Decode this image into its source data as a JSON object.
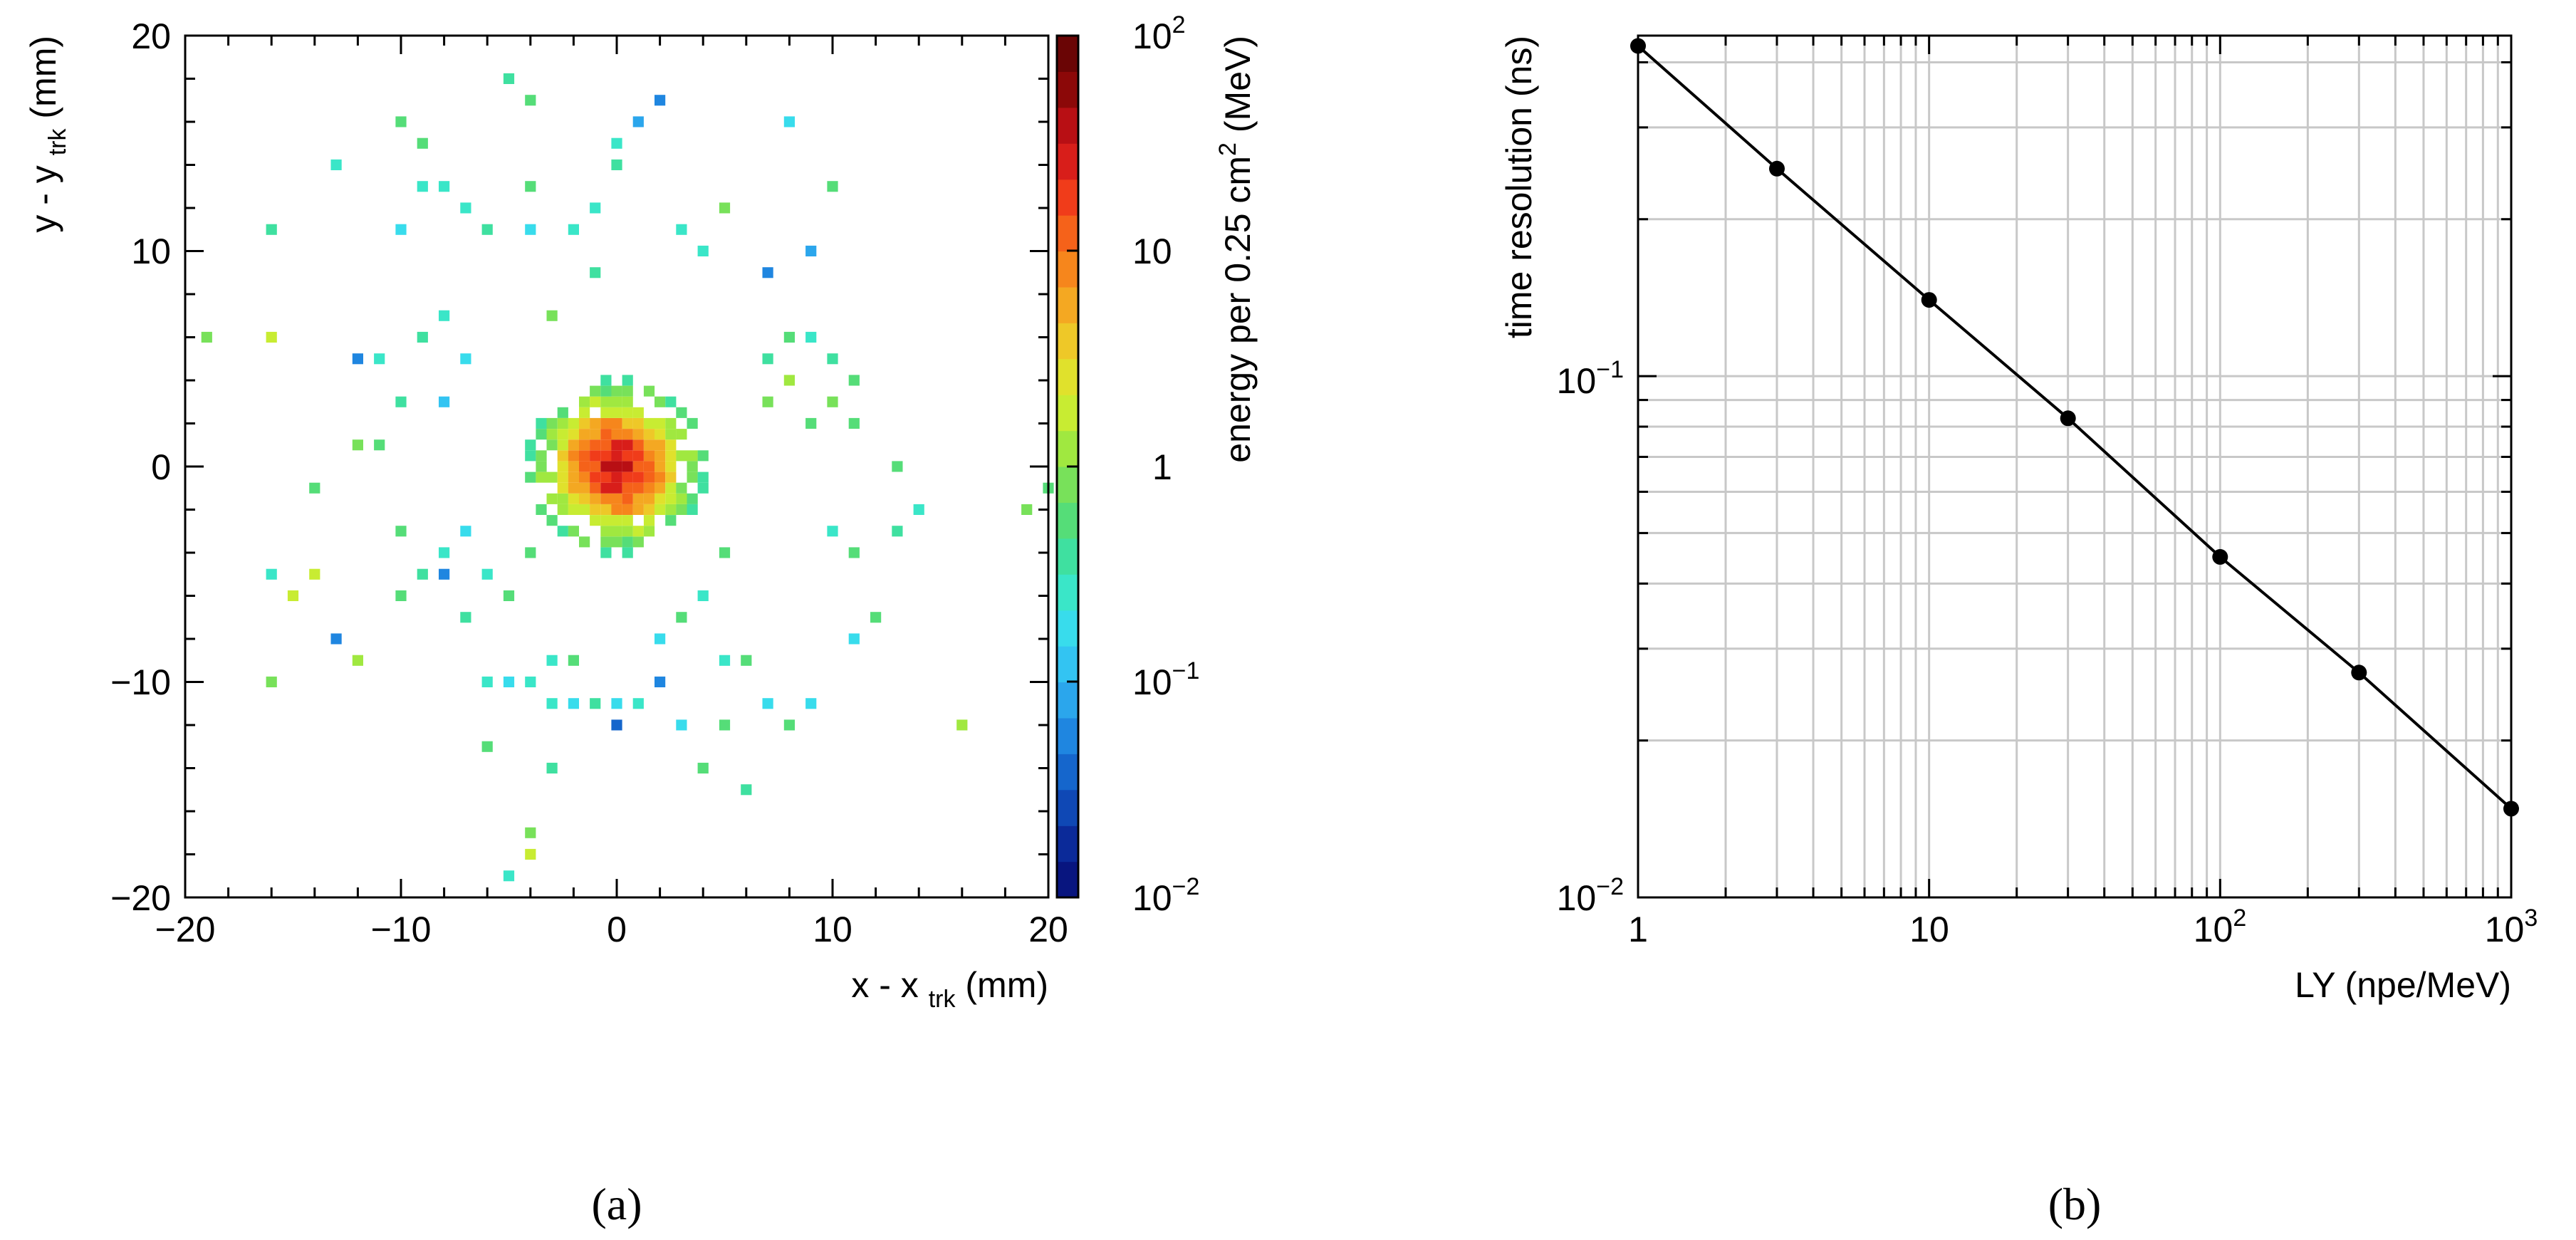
{
  "chart_data": [
    {
      "type": "heatmap",
      "panel_label": "(a)",
      "xlabel": "x - x",
      "xlabel_sub": "trk",
      "xlabel_unit": "(mm)",
      "ylabel": "y - y",
      "ylabel_sub": "trk",
      "ylabel_unit": "(mm)",
      "xlim": [
        -20,
        20
      ],
      "ylim": [
        -20,
        20
      ],
      "bin_size_mm": 0.5,
      "x_ticks": [
        "−20",
        "−10",
        "0",
        "10",
        "20"
      ],
      "y_ticks": [
        "20",
        "10",
        "0",
        "−10",
        "−20"
      ],
      "colorbar": {
        "label": "energy per 0.25 cm",
        "label_sup": "2",
        "label_unit": "(MeV)",
        "scale": "log",
        "range": [
          0.01,
          100
        ],
        "ticks": [
          {
            "base": "10",
            "exp": "2"
          },
          {
            "base": "10",
            "exp": ""
          },
          {
            "base": "1",
            "exp": ""
          },
          {
            "base": "10",
            "exp": "−1"
          },
          {
            "base": "10",
            "exp": "−2"
          }
        ],
        "colors": [
          "#08157f",
          "#0b2a99",
          "#0f48b5",
          "#1566cc",
          "#1f86e0",
          "#2ba6ec",
          "#33c4f2",
          "#38dcec",
          "#3ae6c8",
          "#3fe0a0",
          "#55dd78",
          "#78e15a",
          "#a0e840",
          "#c8ec32",
          "#e0e12c",
          "#eec828",
          "#f4a822",
          "#f6861c",
          "#f5621a",
          "#f03c1a",
          "#d81e1a",
          "#b80f14",
          "#8c0808",
          "#6a0505"
        ]
      },
      "cells": [
        [
          -16,
          11,
          0.35
        ],
        [
          -13,
          14,
          0.25
        ],
        [
          -10,
          16,
          0.6
        ],
        [
          -9,
          15,
          0.5
        ],
        [
          -9,
          13,
          0.3
        ],
        [
          -8,
          13,
          0.25
        ],
        [
          -10,
          11,
          0.2
        ],
        [
          -7,
          12,
          0.3
        ],
        [
          -6,
          11,
          0.4
        ],
        [
          -4,
          13,
          0.5
        ],
        [
          -4,
          11,
          0.2
        ],
        [
          -2,
          11,
          0.25
        ],
        [
          -1,
          12,
          0.3
        ],
        [
          0,
          14,
          0.4
        ],
        [
          0,
          15,
          0.3
        ],
        [
          2,
          17,
          0.05
        ],
        [
          1,
          16,
          0.08
        ],
        [
          -5,
          18,
          0.35
        ],
        [
          -4,
          17,
          0.6
        ],
        [
          5,
          12,
          0.7
        ],
        [
          3,
          11,
          0.3
        ],
        [
          8,
          16,
          0.15
        ],
        [
          10,
          13,
          0.6
        ],
        [
          9,
          10,
          0.08
        ],
        [
          7,
          9,
          0.05
        ],
        [
          4,
          10,
          0.3
        ],
        [
          -1,
          9,
          0.4
        ],
        [
          -3,
          7,
          0.8
        ],
        [
          -19,
          6,
          0.8
        ],
        [
          -16,
          6,
          1.5
        ],
        [
          -12,
          5,
          0.05
        ],
        [
          -11,
          5,
          0.3
        ],
        [
          -9,
          6,
          0.4
        ],
        [
          -8,
          7,
          0.3
        ],
        [
          -7,
          5,
          0.2
        ],
        [
          -8,
          3,
          0.1
        ],
        [
          -10,
          3,
          0.4
        ],
        [
          -11,
          1,
          0.6
        ],
        [
          -12,
          1,
          0.8
        ],
        [
          -14,
          -1,
          0.5
        ],
        [
          -14,
          -5,
          1.5
        ],
        [
          -15,
          -6,
          1.8
        ],
        [
          -16,
          -5,
          0.3
        ],
        [
          -13,
          -8,
          0.05
        ],
        [
          -12,
          -9,
          1.2
        ],
        [
          -16,
          -10,
          0.8
        ],
        [
          -10,
          -6,
          0.6
        ],
        [
          -9,
          -5,
          0.4
        ],
        [
          -8,
          -4,
          0.3
        ],
        [
          -7,
          -3,
          0.2
        ],
        [
          -10,
          -3,
          0.5
        ],
        [
          -6,
          -10,
          0.3
        ],
        [
          -5,
          -10,
          0.15
        ],
        [
          -4,
          -10,
          0.25
        ],
        [
          -6,
          -13,
          0.6
        ],
        [
          -4,
          -17,
          0.7
        ],
        [
          -4,
          -18,
          1.5
        ],
        [
          -5,
          -19,
          0.3
        ],
        [
          -3,
          -11,
          0.25
        ],
        [
          -2,
          -11,
          0.2
        ],
        [
          -1,
          -11,
          0.4
        ],
        [
          0,
          -11,
          0.15
        ],
        [
          1,
          -11,
          0.3
        ],
        [
          0,
          -12,
          0.04
        ],
        [
          2,
          -10,
          0.05
        ],
        [
          3,
          -12,
          0.2
        ],
        [
          4,
          -14,
          0.5
        ],
        [
          5,
          -12,
          0.6
        ],
        [
          6,
          -15,
          0.4
        ],
        [
          7,
          -11,
          0.15
        ],
        [
          8,
          -12,
          0.5
        ],
        [
          9,
          -11,
          0.2
        ],
        [
          6,
          -9,
          0.6
        ],
        [
          5,
          -9,
          0.3
        ],
        [
          11,
          -8,
          0.2
        ],
        [
          12,
          -7,
          0.6
        ],
        [
          14,
          -2,
          0.3
        ],
        [
          13,
          -3,
          0.4
        ],
        [
          16,
          -12,
          1.0
        ],
        [
          19,
          -2,
          0.8
        ],
        [
          20,
          -1,
          0.6
        ],
        [
          13,
          0,
          0.5
        ],
        [
          11,
          2,
          0.5
        ],
        [
          10,
          3,
          0.8
        ],
        [
          11,
          4,
          0.6
        ],
        [
          10,
          5,
          0.4
        ],
        [
          9,
          6,
          0.3
        ],
        [
          8,
          6,
          0.5
        ],
        [
          7,
          5,
          0.4
        ],
        [
          8,
          4,
          1.2
        ],
        [
          7,
          3,
          0.7
        ],
        [
          9,
          2,
          0.6
        ],
        [
          10,
          -3,
          0.3
        ],
        [
          11,
          -4,
          0.5
        ],
        [
          -3,
          -14,
          0.4
        ],
        [
          -3,
          -9,
          0.3
        ],
        [
          -2,
          -9,
          0.6
        ],
        [
          3,
          -7,
          0.5
        ],
        [
          2,
          -8,
          0.2
        ],
        [
          -7,
          -7,
          0.4
        ],
        [
          -8,
          -5,
          0.05
        ],
        [
          -6,
          -5,
          0.3
        ],
        [
          -5,
          -6,
          0.5
        ],
        [
          -4,
          -4,
          0.6
        ],
        [
          4,
          -6,
          0.3
        ],
        [
          5,
          -4,
          0.5
        ]
      ]
    },
    {
      "type": "line",
      "panel_label": "(b)",
      "xlabel": "LY (npe/MeV)",
      "ylabel": "time resolution (ns)",
      "xscale": "log",
      "yscale": "log",
      "xlim": [
        1,
        1000
      ],
      "ylim": [
        0.01,
        0.45
      ],
      "x_ticks": [
        {
          "value": 1,
          "base": "1",
          "exp": ""
        },
        {
          "value": 10,
          "base": "10",
          "exp": ""
        },
        {
          "value": 100,
          "base": "10",
          "exp": "2"
        },
        {
          "value": 1000,
          "base": "10",
          "exp": "3"
        }
      ],
      "y_ticks": [
        {
          "value": 0.1,
          "base": "10",
          "exp": "−1"
        },
        {
          "value": 0.01,
          "base": "10",
          "exp": "−2"
        }
      ],
      "series": [
        {
          "name": "time resolution",
          "x": [
            1,
            3,
            10,
            30,
            100,
            300,
            1000
          ],
          "y": [
            0.43,
            0.25,
            0.14,
            0.083,
            0.045,
            0.027,
            0.0148
          ]
        }
      ]
    }
  ]
}
